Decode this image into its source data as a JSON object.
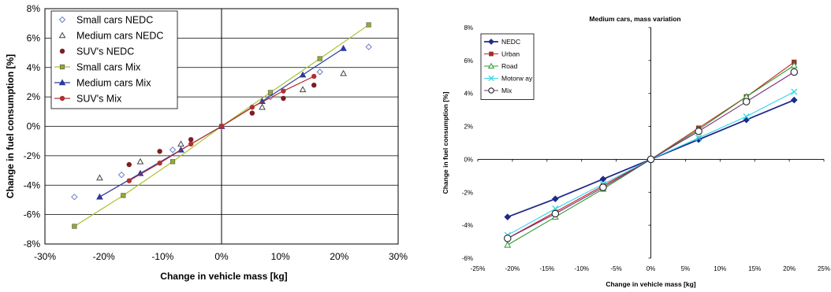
{
  "chart_data": [
    {
      "type": "scatter",
      "title": "",
      "xlabel": "Change in vehicle mass [kg]",
      "ylabel": "Change in fuel consumption [%]",
      "xlim": [
        -30,
        30
      ],
      "ylim": [
        -8,
        8
      ],
      "xticks": [
        -30,
        -20,
        -10,
        0,
        10,
        20,
        30
      ],
      "yticks": [
        -8,
        -6,
        -4,
        -2,
        0,
        2,
        4,
        6,
        8
      ],
      "grid": "horizontal",
      "legend_position": "top-left",
      "series": [
        {
          "name": "Small cars NEDC",
          "kind": "points",
          "marker": "diamond-open",
          "color": "#6a7fc4",
          "x": [
            -25,
            -17,
            -8.3,
            0,
            8.3,
            16.7,
            25
          ],
          "y": [
            -4.8,
            -3.3,
            -1.6,
            0,
            2.0,
            3.7,
            5.4
          ]
        },
        {
          "name": "Medium cars NEDC",
          "kind": "points",
          "marker": "triangle-open",
          "color": "#444444",
          "x": [
            -20.7,
            -13.8,
            -6.9,
            0,
            6.9,
            13.8,
            20.7
          ],
          "y": [
            -3.5,
            -2.4,
            -1.2,
            0,
            1.3,
            2.5,
            3.6
          ]
        },
        {
          "name": "SUV's NEDC",
          "kind": "points",
          "marker": "circle-filled",
          "color": "#7b1f1f",
          "x": [
            -15.7,
            -10.5,
            -5.2,
            0,
            5.2,
            10.5,
            15.7
          ],
          "y": [
            -2.6,
            -1.7,
            -0.9,
            0,
            0.9,
            1.9,
            2.8
          ]
        },
        {
          "name": "Small cars Mix",
          "kind": "line",
          "marker": "square-filled",
          "color": "#a8c430",
          "markerColor": "#8fae2c",
          "x": [
            -25,
            -16.7,
            -8.3,
            0,
            8.3,
            16.7,
            25
          ],
          "y": [
            -6.8,
            -4.7,
            -2.4,
            0,
            2.3,
            4.6,
            6.9
          ]
        },
        {
          "name": "Medium cars Mix",
          "kind": "line",
          "marker": "triangle-filled",
          "color": "#2b3aa0",
          "x": [
            -20.7,
            -13.8,
            -6.9,
            0,
            6.9,
            13.8,
            20.7
          ],
          "y": [
            -4.8,
            -3.2,
            -1.6,
            0,
            1.7,
            3.5,
            5.3
          ]
        },
        {
          "name": "SUV's Mix",
          "kind": "line",
          "marker": "circle-filled",
          "color": "#b03030",
          "x": [
            -15.7,
            -10.5,
            -5.2,
            0,
            5.2,
            10.5,
            15.7
          ],
          "y": [
            -3.7,
            -2.5,
            -1.2,
            0,
            1.3,
            2.4,
            3.4
          ]
        }
      ]
    },
    {
      "type": "line",
      "title": "Medium cars, mass variation",
      "xlabel": "Change in vehicle mass [kg]",
      "ylabel": "Change in fuel consumption [%]",
      "xlim": [
        -25,
        25
      ],
      "ylim": [
        -6,
        8
      ],
      "xticks": [
        -25,
        -20,
        -15,
        -10,
        -5,
        0,
        5,
        10,
        15,
        20,
        25
      ],
      "yticks": [
        -6,
        -4,
        -2,
        0,
        2,
        4,
        6,
        8
      ],
      "grid": "none",
      "legend_position": "top-left",
      "series": [
        {
          "name": "NEDC",
          "marker": "diamond-filled",
          "color": "#1f2a8a",
          "x": [
            -20.7,
            -13.8,
            -6.9,
            0,
            6.9,
            13.8,
            20.7
          ],
          "y": [
            -3.5,
            -2.4,
            -1.2,
            0,
            1.2,
            2.4,
            3.6
          ]
        },
        {
          "name": "Urban",
          "marker": "square-filled",
          "color": "#c02020",
          "x": [
            -20.7,
            -13.8,
            -6.9,
            0,
            6.9,
            13.8,
            20.7
          ],
          "y": [
            -4.8,
            -3.2,
            -1.6,
            0,
            1.9,
            3.8,
            5.9
          ]
        },
        {
          "name": "Road",
          "marker": "triangle-open",
          "color": "#2e9a2e",
          "x": [
            -20.7,
            -13.8,
            -6.9,
            0,
            6.9,
            13.8,
            20.7
          ],
          "y": [
            -5.2,
            -3.5,
            -1.8,
            0,
            1.8,
            3.8,
            5.7
          ]
        },
        {
          "name": "Motorw ay",
          "marker": "x",
          "color": "#33d6e6",
          "x": [
            -20.7,
            -13.8,
            -6.9,
            0,
            6.9,
            13.8,
            20.7
          ],
          "y": [
            -4.6,
            -3.0,
            -1.5,
            0,
            1.3,
            2.6,
            4.1
          ]
        },
        {
          "name": "Mix",
          "marker": "circle-open",
          "color": "#7a2a7a",
          "x": [
            -20.7,
            -13.8,
            -6.9,
            0,
            6.9,
            13.8,
            20.7
          ],
          "y": [
            -4.8,
            -3.3,
            -1.7,
            0,
            1.7,
            3.5,
            5.3
          ]
        }
      ]
    }
  ]
}
